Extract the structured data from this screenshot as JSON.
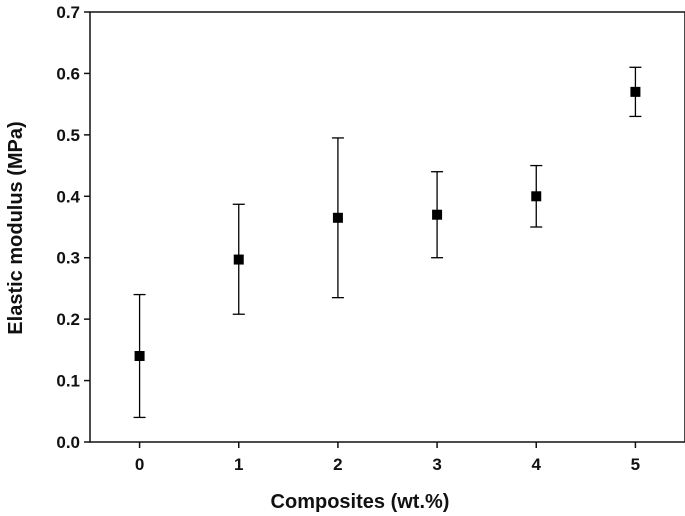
{
  "chart_data": {
    "type": "scatter",
    "title": "",
    "xlabel": "Composites (wt.%)",
    "ylabel": "Elastic modulus (MPa)",
    "xlim": [
      -0.5,
      5.5
    ],
    "ylim": [
      0.0,
      0.7
    ],
    "x_ticks": [
      0,
      1,
      2,
      3,
      4,
      5
    ],
    "y_ticks": [
      0.0,
      0.1,
      0.2,
      0.3,
      0.4,
      0.5,
      0.6,
      0.7
    ],
    "y_tick_labels": [
      "0.0",
      "0.1",
      "0.2",
      "0.3",
      "0.4",
      "0.5",
      "0.6",
      "0.7"
    ],
    "grid": false,
    "legend": "none",
    "marker": "square",
    "color": "#000000",
    "series": [
      {
        "x": [
          0,
          1,
          2,
          3,
          4,
          5
        ],
        "y": [
          0.14,
          0.297,
          0.365,
          0.37,
          0.4,
          0.57
        ],
        "error_low": [
          0.04,
          0.208,
          0.235,
          0.3,
          0.35,
          0.53
        ],
        "error_high": [
          0.24,
          0.387,
          0.495,
          0.44,
          0.45,
          0.61
        ]
      }
    ]
  }
}
